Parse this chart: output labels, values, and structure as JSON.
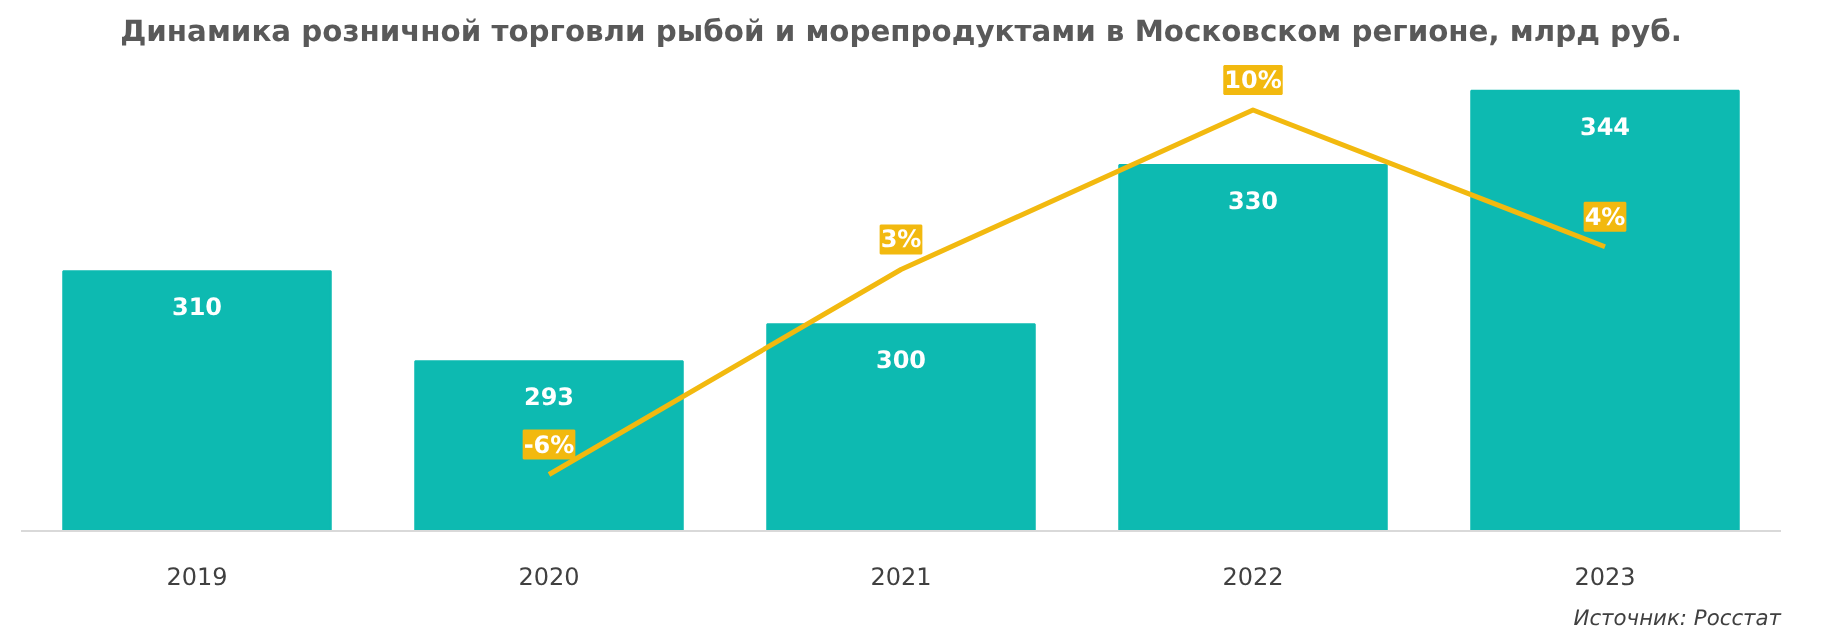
{
  "chart_data": {
    "type": "bar",
    "title": "Динамика розничной торговли рыбой и морепродуктами в Московском регионе, млрд руб.",
    "categories": [
      "2019",
      "2020",
      "2021",
      "2022",
      "2023"
    ],
    "series": [
      {
        "color": "#0dbab1",
        "values": [
          310,
          293,
          300,
          330,
          344
        ],
        "value_labels": [
          "310",
          "293",
          "300",
          "330",
          "344"
        ]
      },
      {
        "type": "line",
        "axis": "y2",
        "color": "#f2b90f",
        "values": [
          null,
          -6,
          3,
          10,
          4
        ],
        "value_labels": [
          null,
          "-6%",
          "3%",
          "10%",
          "4%"
        ]
      }
    ],
    "annotations": [
      "Источник: Росстат"
    ],
    "grid": false,
    "ylim": [
      261,
      350
    ]
  }
}
